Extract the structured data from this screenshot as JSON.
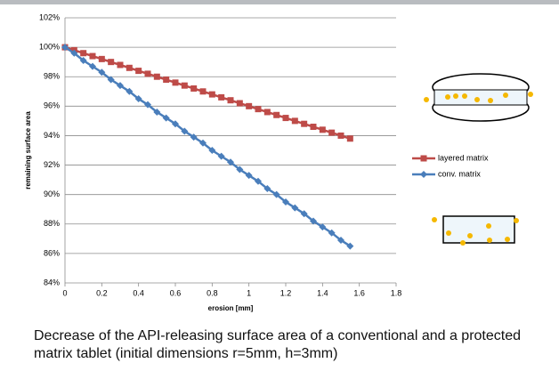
{
  "chart_data": {
    "type": "line",
    "x_label": "erosion [mm]",
    "y_label": "remaining surface area",
    "x": [
      0,
      0.05,
      0.1,
      0.15,
      0.2,
      0.25,
      0.3,
      0.35,
      0.4,
      0.45,
      0.5,
      0.55,
      0.6,
      0.65,
      0.7,
      0.75,
      0.8,
      0.85,
      0.9,
      0.95,
      1.0,
      1.05,
      1.1,
      1.15,
      1.2,
      1.25,
      1.3,
      1.35,
      1.4,
      1.45,
      1.5,
      1.55
    ],
    "series": [
      {
        "name": "layered matrix",
        "color": "#be4b48",
        "marker": "square",
        "values": [
          100,
          99.8,
          99.6,
          99.4,
          99.2,
          99.0,
          98.8,
          98.6,
          98.4,
          98.2,
          98.0,
          97.8,
          97.6,
          97.4,
          97.2,
          97.0,
          96.8,
          96.6,
          96.4,
          96.2,
          96.0,
          95.8,
          95.6,
          95.4,
          95.2,
          95.0,
          94.8,
          94.6,
          94.4,
          94.2,
          94.0,
          93.8
        ]
      },
      {
        "name": "conv. matrix",
        "color": "#4a7ebb",
        "marker": "diamond",
        "values": [
          100,
          99.6,
          99.1,
          98.7,
          98.3,
          97.8,
          97.4,
          97.0,
          96.5,
          96.1,
          95.6,
          95.2,
          94.8,
          94.3,
          93.9,
          93.5,
          93.0,
          92.6,
          92.2,
          91.7,
          91.3,
          90.9,
          90.4,
          90.0,
          89.5,
          89.1,
          88.7,
          88.2,
          87.8,
          87.4,
          86.9,
          86.5
        ]
      }
    ],
    "xlim": [
      0,
      1.8
    ],
    "xticks": [
      0,
      0.2,
      0.4,
      0.6,
      0.8,
      1,
      1.2,
      1.4,
      1.6,
      1.8
    ],
    "ylim": [
      84,
      102
    ],
    "yticks": [
      {
        "value": 84,
        "label": "84%"
      },
      {
        "value": 86,
        "label": "86%"
      },
      {
        "value": 88,
        "label": "88%"
      },
      {
        "value": 90,
        "label": "90%"
      },
      {
        "value": 92,
        "label": "92%"
      },
      {
        "value": 94,
        "label": "94%"
      },
      {
        "value": 96,
        "label": "96%"
      },
      {
        "value": 98,
        "label": "98%"
      },
      {
        "value": 100,
        "label": "100%"
      },
      {
        "value": 102,
        "label": "102%"
      }
    ],
    "grid": true,
    "legend": "right"
  },
  "caption_lines": [
    "Decrease of the API-releasing surface area of a conventional and a protected",
    "matrix tablet (initial dimensions r=5mm, h=3mm)"
  ]
}
